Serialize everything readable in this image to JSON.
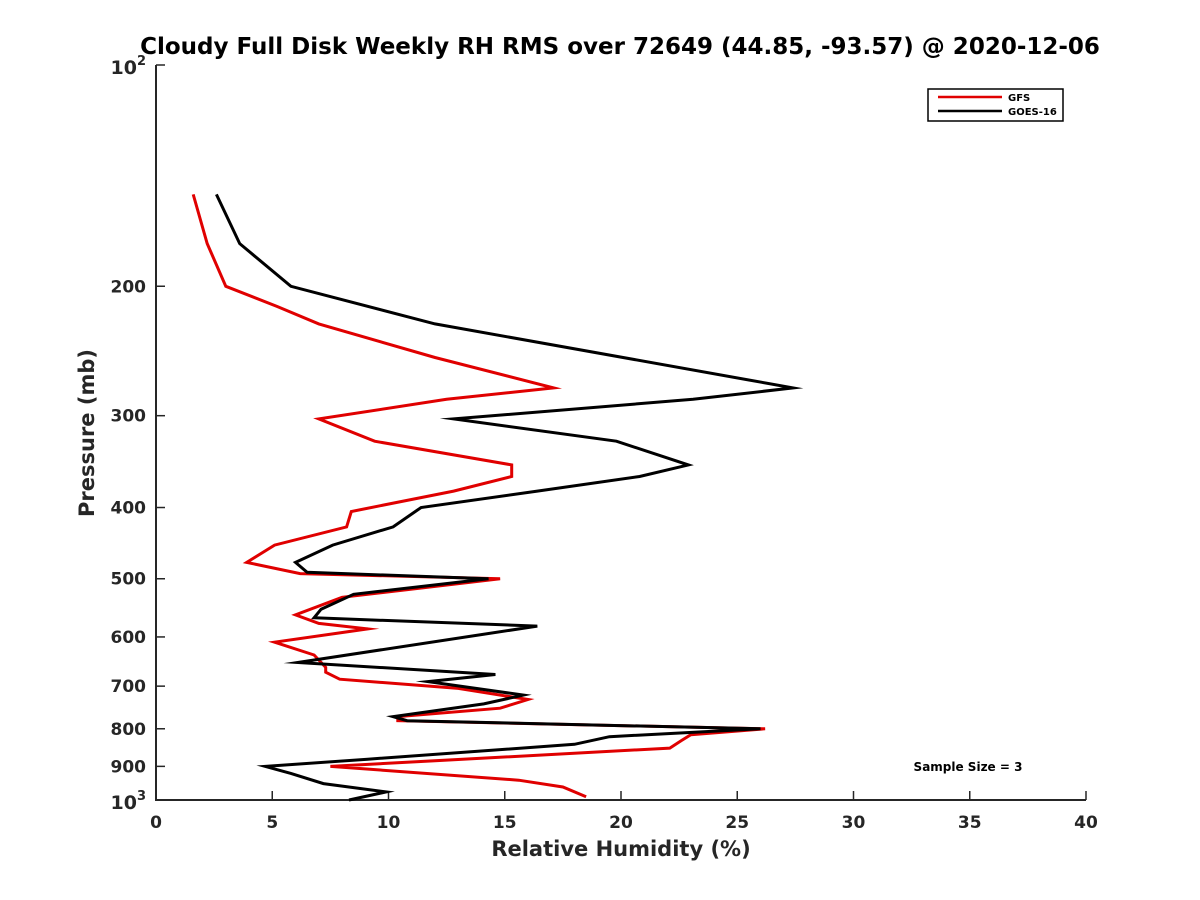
{
  "chart_data": {
    "type": "line",
    "title": "Cloudy Full Disk Weekly RH RMS over 72649 (44.85, -93.57) @ 2020-12-06",
    "xlabel": "Relative Humidity (%)",
    "ylabel": "Pressure (mb)",
    "xlim": [
      0,
      40
    ],
    "ylim": [
      100,
      1000
    ],
    "y_scale": "log",
    "y_reversed": true,
    "grid": false,
    "legend_position": "top-right",
    "x_ticks": [
      "0",
      "5",
      "10",
      "15",
      "20",
      "25",
      "30",
      "35",
      "40"
    ],
    "y_ticks": [
      {
        "value": 100,
        "base": "10",
        "exp": "2"
      },
      {
        "value": 200,
        "label": "200"
      },
      {
        "value": 300,
        "label": "300"
      },
      {
        "value": 400,
        "label": "400"
      },
      {
        "value": 500,
        "label": "500"
      },
      {
        "value": 600,
        "label": "600"
      },
      {
        "value": 700,
        "label": "700"
      },
      {
        "value": 800,
        "label": "800"
      },
      {
        "value": 900,
        "label": "900"
      },
      {
        "value": 1000,
        "base": "10",
        "exp": "3"
      }
    ],
    "annotation": "Sample Size = 3",
    "series": [
      {
        "name": "GFS",
        "color": "#e00000",
        "points": [
          [
            1.6,
            150
          ],
          [
            2.2,
            175
          ],
          [
            3.0,
            200
          ],
          [
            5.2,
            213
          ],
          [
            7.0,
            225
          ],
          [
            12.0,
            250
          ],
          [
            17.1,
            275
          ],
          [
            12.5,
            285
          ],
          [
            7.0,
            303
          ],
          [
            9.4,
            325
          ],
          [
            15.3,
            350
          ],
          [
            15.3,
            363
          ],
          [
            12.8,
            380
          ],
          [
            8.4,
            405
          ],
          [
            8.2,
            425
          ],
          [
            5.1,
            450
          ],
          [
            3.9,
            475
          ],
          [
            6.2,
            492
          ],
          [
            14.8,
            500
          ],
          [
            8.0,
            530
          ],
          [
            6.0,
            560
          ],
          [
            7.0,
            575
          ],
          [
            9.1,
            585
          ],
          [
            5.1,
            610
          ],
          [
            6.8,
            635
          ],
          [
            7.3,
            660
          ],
          [
            7.3,
            670
          ],
          [
            7.9,
            685
          ],
          [
            13.0,
            705
          ],
          [
            16.0,
            730
          ],
          [
            14.8,
            750
          ],
          [
            10.4,
            770
          ],
          [
            10.4,
            780
          ],
          [
            26.2,
            800
          ],
          [
            23.0,
            815
          ],
          [
            22.6,
            830
          ],
          [
            22.1,
            850
          ],
          [
            7.5,
            900
          ],
          [
            15.6,
            940
          ],
          [
            17.5,
            960
          ],
          [
            18.5,
            990
          ]
        ]
      },
      {
        "name": "GOES-16",
        "color": "#000000",
        "points": [
          [
            2.6,
            150
          ],
          [
            3.6,
            175
          ],
          [
            5.8,
            200
          ],
          [
            12.0,
            225
          ],
          [
            27.4,
            275
          ],
          [
            23.1,
            285
          ],
          [
            12.8,
            303
          ],
          [
            19.8,
            325
          ],
          [
            22.9,
            350
          ],
          [
            20.8,
            363
          ],
          [
            16.4,
            380
          ],
          [
            11.4,
            400
          ],
          [
            10.2,
            425
          ],
          [
            7.6,
            450
          ],
          [
            6.0,
            475
          ],
          [
            6.5,
            490
          ],
          [
            14.3,
            500
          ],
          [
            8.5,
            525
          ],
          [
            7.1,
            550
          ],
          [
            6.8,
            565
          ],
          [
            16.4,
            580
          ],
          [
            6.1,
            650
          ],
          [
            14.6,
            675
          ],
          [
            11.7,
            690
          ],
          [
            15.8,
            720
          ],
          [
            14.1,
            740
          ],
          [
            10.2,
            770
          ],
          [
            10.8,
            780
          ],
          [
            26.0,
            800
          ],
          [
            19.5,
            820
          ],
          [
            18.0,
            840
          ],
          [
            9.1,
            880
          ],
          [
            4.7,
            900
          ],
          [
            5.8,
            920
          ],
          [
            7.2,
            950
          ],
          [
            9.9,
            975
          ],
          [
            8.3,
            1000
          ]
        ]
      }
    ]
  }
}
